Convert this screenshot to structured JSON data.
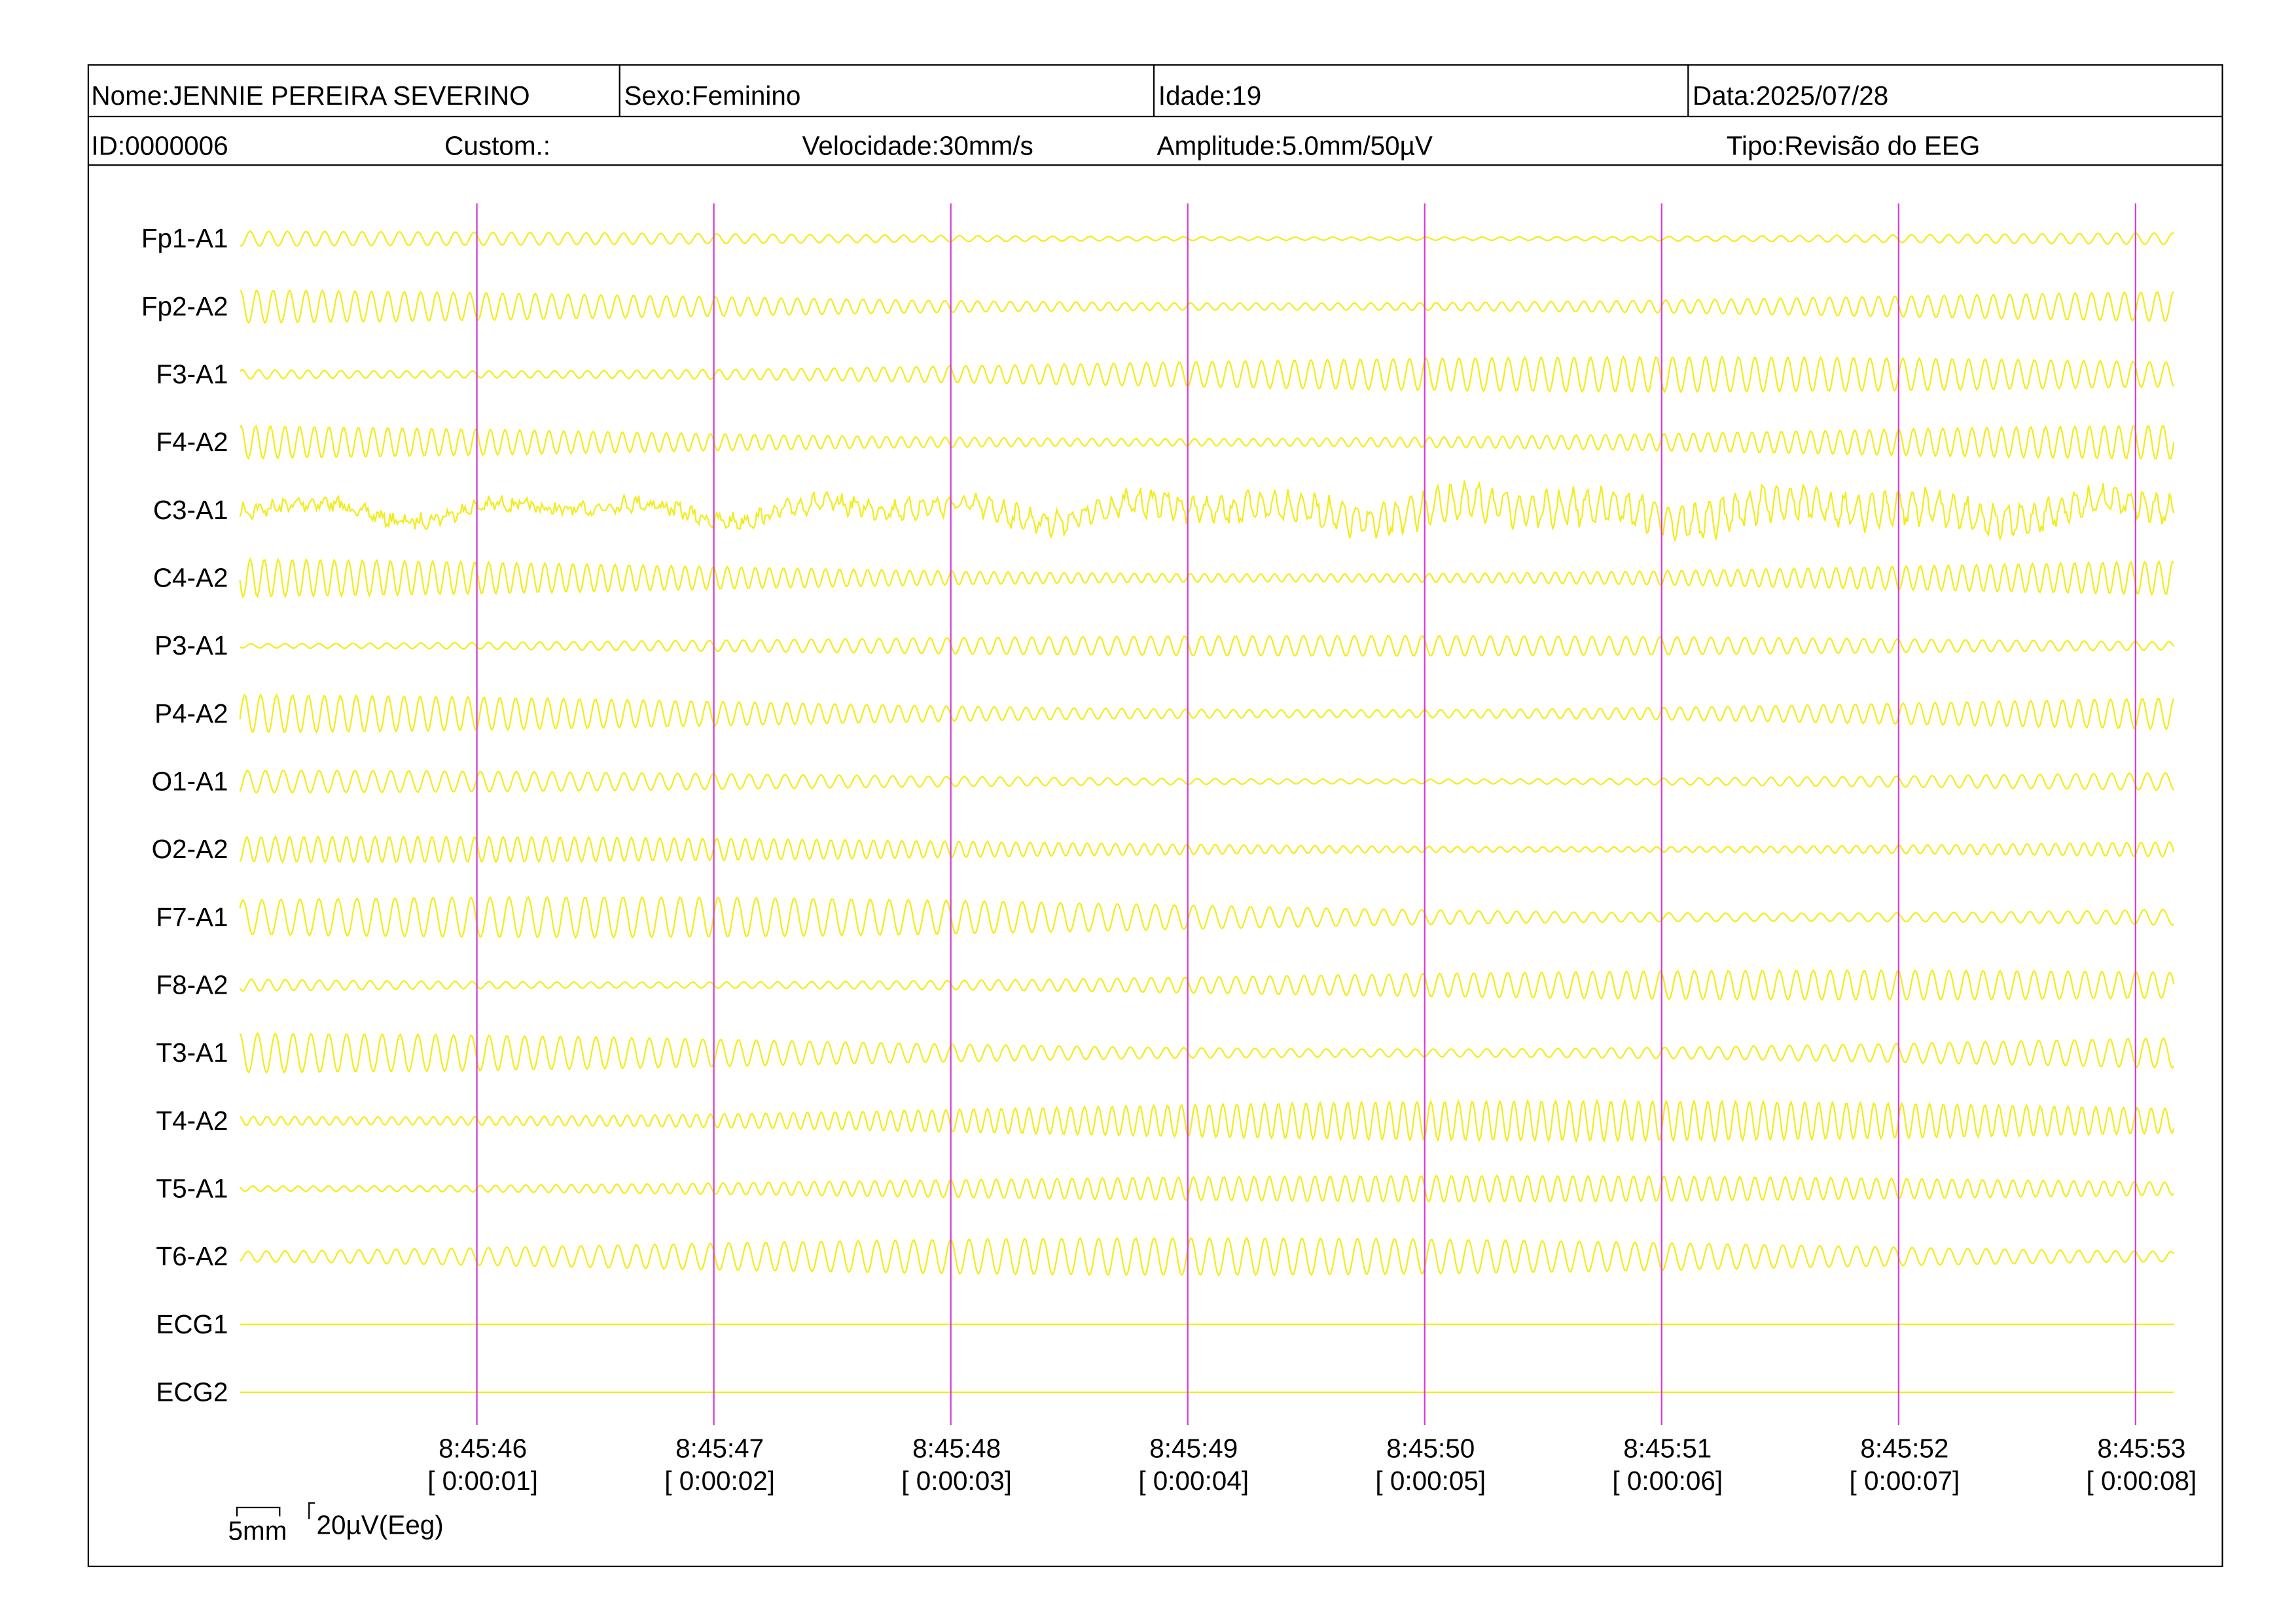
{
  "header": {
    "name": "Nome:JENNIE PEREIRA SEVERINO",
    "sex": "Sexo:Feminino",
    "age": "Idade:19",
    "date": "Data:2025/07/28",
    "id": "ID:0000006",
    "custom": "Custom.:",
    "speed": "Velocidade:30mm/s",
    "amplitude": "Amplitude:5.0mm/50µV",
    "type": "Tipo:Revisão do EEG"
  },
  "channels": [
    "Fp1-A1",
    "Fp2-A2",
    "F3-A1",
    "F4-A2",
    "C3-A1",
    "C4-A2",
    "P3-A1",
    "P4-A2",
    "O1-A1",
    "O2-A2",
    "F7-A1",
    "F8-A2",
    "T3-A1",
    "T4-A2",
    "T5-A1",
    "T6-A2",
    "ECG1",
    "ECG2"
  ],
  "time_marks": [
    {
      "time": "8:45:46",
      "elapsed": "[ 0:00:01]"
    },
    {
      "time": "8:45:47",
      "elapsed": "[ 0:00:02]"
    },
    {
      "time": "8:45:48",
      "elapsed": "[ 0:00:03]"
    },
    {
      "time": "8:45:49",
      "elapsed": "[ 0:00:04]"
    },
    {
      "time": "8:45:50",
      "elapsed": "[ 0:00:05]"
    },
    {
      "time": "8:45:51",
      "elapsed": "[ 0:00:06]"
    },
    {
      "time": "8:45:52",
      "elapsed": "[ 0:00:07]"
    },
    {
      "time": "8:45:53",
      "elapsed": "[ 0:00:08]"
    }
  ],
  "scale": {
    "time": "5mm",
    "amplitude": "20µV(Eeg)"
  }
}
